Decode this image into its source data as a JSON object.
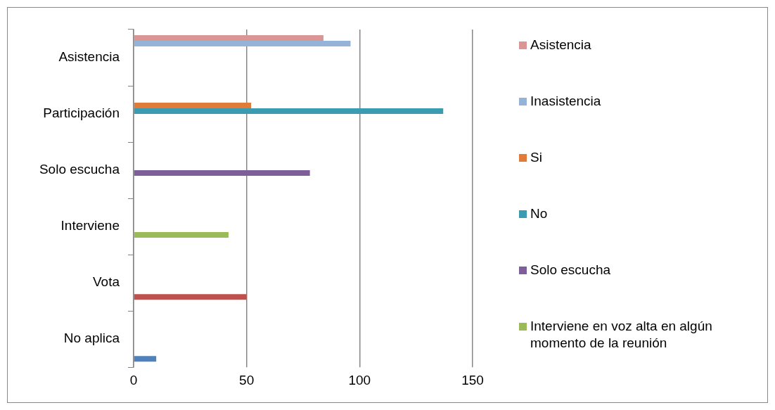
{
  "chart_data": {
    "type": "bar",
    "orientation": "horizontal",
    "categories": [
      "Asistencia",
      "Participación",
      "Solo escucha",
      "Interviene",
      "Vota",
      "No aplica"
    ],
    "series": [
      {
        "name": "Asistencia",
        "color": "#d99694",
        "values": [
          84,
          null,
          null,
          null,
          null,
          null
        ]
      },
      {
        "name": "Inasistencia",
        "color": "#95b3d7",
        "values": [
          96,
          null,
          null,
          null,
          null,
          null
        ]
      },
      {
        "name": "Si",
        "color": "#e07b39",
        "values": [
          null,
          52,
          null,
          null,
          null,
          null
        ]
      },
      {
        "name": "No",
        "color": "#3b9bb0",
        "values": [
          null,
          137,
          null,
          null,
          null,
          null
        ]
      },
      {
        "name": "Solo escucha",
        "color": "#7f5f9a",
        "values": [
          null,
          null,
          78,
          null,
          null,
          null
        ]
      },
      {
        "name": "Interviene en voz alta en algún momento de la reunión",
        "color": "#9bbb59",
        "values": [
          null,
          null,
          null,
          42,
          null,
          null
        ]
      },
      {
        "color": "#c0504d",
        "values": [
          null,
          null,
          null,
          null,
          50,
          null
        ]
      },
      {
        "color": "#4f81bd",
        "values": [
          null,
          null,
          null,
          null,
          null,
          10
        ]
      }
    ],
    "xlim": [
      0,
      150
    ],
    "xticks": [
      0,
      50,
      100,
      150
    ],
    "grid": "x",
    "legend": "right"
  }
}
